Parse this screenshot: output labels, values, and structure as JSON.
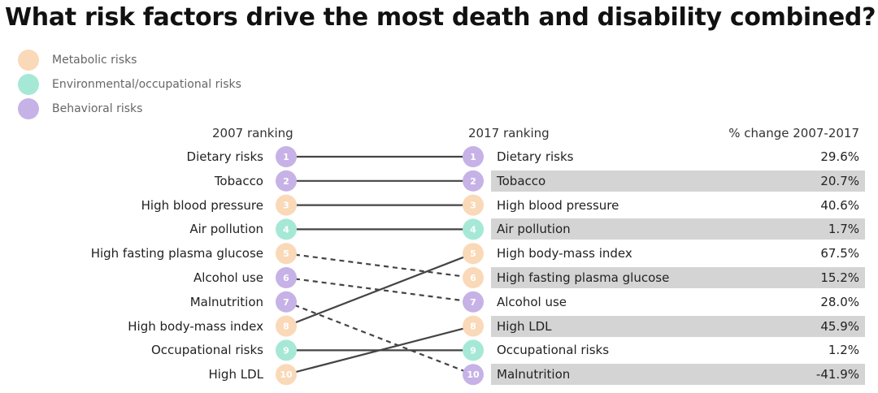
{
  "title": "What risk factors drive the most death and disability combined?",
  "legend": [
    {
      "label": "Metabolic risks",
      "category": "metabolic"
    },
    {
      "label": "Environmental/occupational risks",
      "category": "environmental"
    },
    {
      "label": "Behavioral risks",
      "category": "behavioral"
    }
  ],
  "colors": {
    "metabolic": "#fad9b8",
    "environmental": "#a6e8d6",
    "behavioral": "#c6b2e6",
    "band": "#d4d4d4",
    "line": "#444444"
  },
  "headers": {
    "left": "2007 ranking",
    "right": "2017 ranking",
    "change": "% change 2007-2017"
  },
  "chart_data": {
    "type": "table",
    "subtype": "slope-ranking",
    "ranking_2007": [
      {
        "rank": 1,
        "label": "Dietary risks",
        "category": "behavioral"
      },
      {
        "rank": 2,
        "label": "Tobacco",
        "category": "behavioral"
      },
      {
        "rank": 3,
        "label": "High blood pressure",
        "category": "metabolic"
      },
      {
        "rank": 4,
        "label": "Air pollution",
        "category": "environmental"
      },
      {
        "rank": 5,
        "label": "High fasting plasma glucose",
        "category": "metabolic"
      },
      {
        "rank": 6,
        "label": "Alcohol use",
        "category": "behavioral"
      },
      {
        "rank": 7,
        "label": "Malnutrition",
        "category": "behavioral"
      },
      {
        "rank": 8,
        "label": "High body-mass index",
        "category": "metabolic"
      },
      {
        "rank": 9,
        "label": "Occupational risks",
        "category": "environmental"
      },
      {
        "rank": 10,
        "label": "High LDL",
        "category": "metabolic"
      }
    ],
    "ranking_2017": [
      {
        "rank": 1,
        "label": "Dietary risks",
        "category": "behavioral",
        "change": "29.6%",
        "change_value": 29.6
      },
      {
        "rank": 2,
        "label": "Tobacco",
        "category": "behavioral",
        "change": "20.7%",
        "change_value": 20.7
      },
      {
        "rank": 3,
        "label": "High blood pressure",
        "category": "metabolic",
        "change": "40.6%",
        "change_value": 40.6
      },
      {
        "rank": 4,
        "label": "Air pollution",
        "category": "environmental",
        "change": "1.7%",
        "change_value": 1.7
      },
      {
        "rank": 5,
        "label": "High body-mass index",
        "category": "metabolic",
        "change": "67.5%",
        "change_value": 67.5
      },
      {
        "rank": 6,
        "label": "High fasting plasma glucose",
        "category": "metabolic",
        "change": "15.2%",
        "change_value": 15.2
      },
      {
        "rank": 7,
        "label": "Alcohol use",
        "category": "behavioral",
        "change": "28.0%",
        "change_value": 28.0
      },
      {
        "rank": 8,
        "label": "High LDL",
        "category": "metabolic",
        "change": "45.9%",
        "change_value": 45.9
      },
      {
        "rank": 9,
        "label": "Occupational risks",
        "category": "environmental",
        "change": "1.2%",
        "change_value": 1.2
      },
      {
        "rank": 10,
        "label": "Malnutrition",
        "category": "behavioral",
        "change": "-41.9%",
        "change_value": -41.9
      }
    ],
    "connections": [
      {
        "from_rank": 1,
        "to_rank": 1,
        "style": "solid"
      },
      {
        "from_rank": 2,
        "to_rank": 2,
        "style": "solid"
      },
      {
        "from_rank": 3,
        "to_rank": 3,
        "style": "solid"
      },
      {
        "from_rank": 4,
        "to_rank": 4,
        "style": "solid"
      },
      {
        "from_rank": 5,
        "to_rank": 6,
        "style": "dashed"
      },
      {
        "from_rank": 6,
        "to_rank": 7,
        "style": "dashed"
      },
      {
        "from_rank": 7,
        "to_rank": 10,
        "style": "dashed"
      },
      {
        "from_rank": 8,
        "to_rank": 5,
        "style": "solid"
      },
      {
        "from_rank": 9,
        "to_rank": 9,
        "style": "solid"
      },
      {
        "from_rank": 10,
        "to_rank": 8,
        "style": "solid"
      }
    ]
  }
}
